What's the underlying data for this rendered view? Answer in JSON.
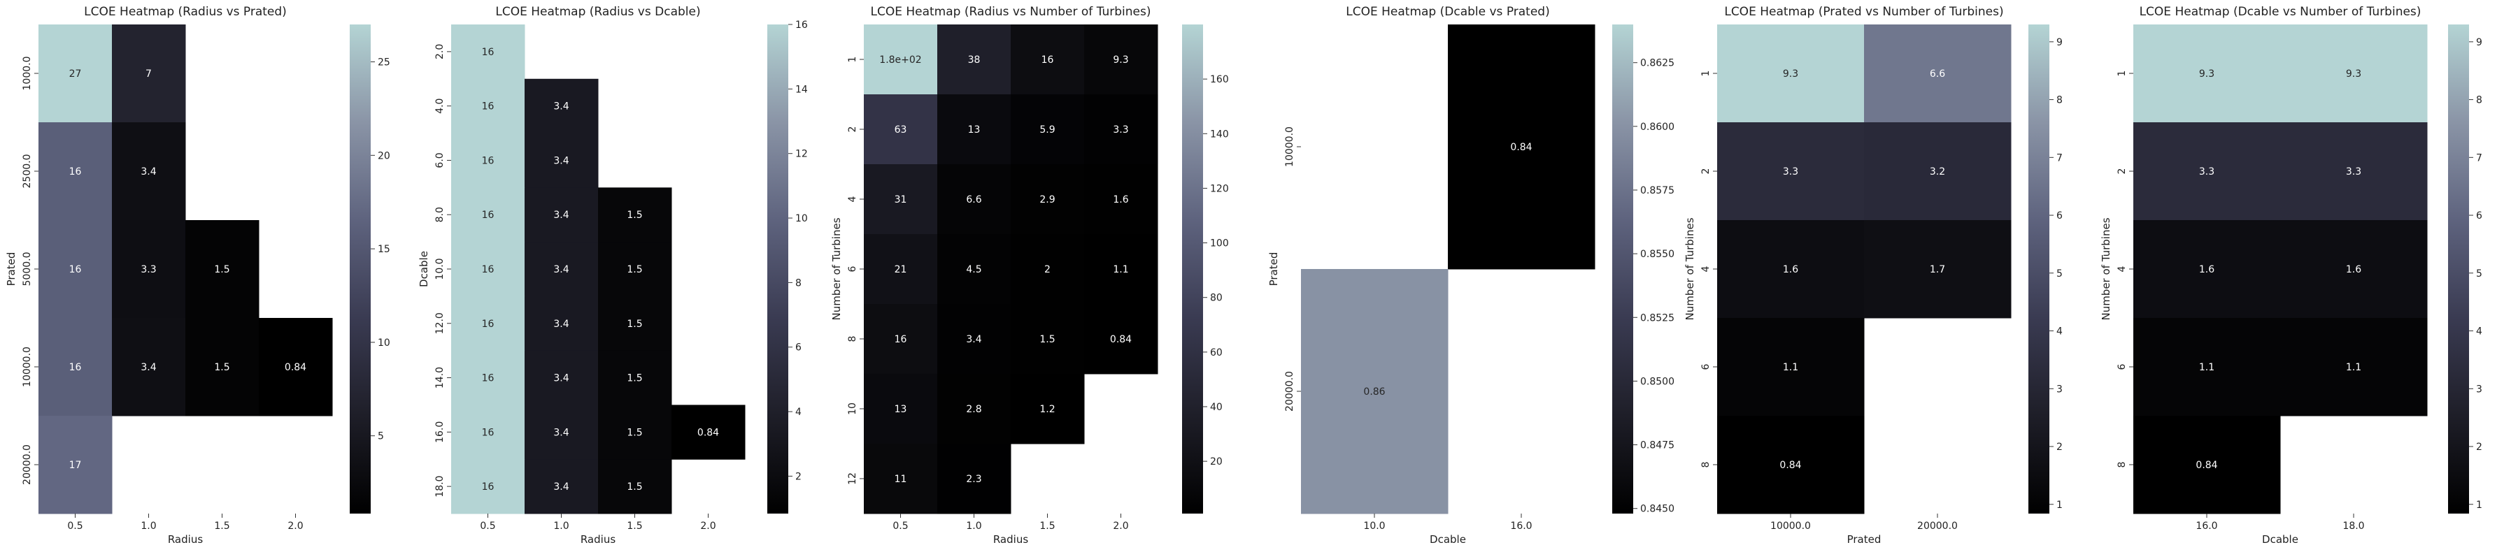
{
  "colormap": [
    "#000000",
    "#1e1e28",
    "#3a3b52",
    "#5e637e",
    "#8a94a6",
    "#b4d4d4"
  ],
  "chart_data": [
    {
      "type": "heatmap",
      "title": "LCOE Heatmap (Radius vs Prated)",
      "xlabel": "Radius",
      "ylabel": "Prated",
      "x_categories": [
        "0.5",
        "1.0",
        "1.5",
        "2.0"
      ],
      "y_categories": [
        "1000.0",
        "2500.0",
        "5000.0",
        "10000.0",
        "20000.0"
      ],
      "values": [
        [
          27,
          7,
          null,
          null
        ],
        [
          16,
          3.4,
          null,
          null
        ],
        [
          16,
          3.3,
          1.5,
          null
        ],
        [
          16,
          3.4,
          1.5,
          0.84
        ],
        [
          17,
          null,
          null,
          null
        ]
      ],
      "labels": [
        [
          "27",
          "7",
          "",
          ""
        ],
        [
          "16",
          "3.4",
          "",
          ""
        ],
        [
          "16",
          "3.3",
          "1.5",
          ""
        ],
        [
          "16",
          "3.4",
          "1.5",
          "0.84"
        ],
        [
          "17",
          "",
          "",
          ""
        ]
      ],
      "colorbar_range": [
        0.84,
        27
      ],
      "colorbar_ticks": [
        "5",
        "10",
        "15",
        "20",
        "25"
      ],
      "colorbar_tick_values": [
        5,
        10,
        15,
        20,
        25
      ]
    },
    {
      "type": "heatmap",
      "title": "LCOE Heatmap (Radius vs Dcable)",
      "xlabel": "Radius",
      "ylabel": "Dcable",
      "x_categories": [
        "0.5",
        "1.0",
        "1.5",
        "2.0"
      ],
      "y_categories": [
        "2.0",
        "4.0",
        "6.0",
        "8.0",
        "10.0",
        "12.0",
        "14.0",
        "16.0",
        "18.0"
      ],
      "values": [
        [
          16,
          null,
          null,
          null
        ],
        [
          16,
          3.4,
          null,
          null
        ],
        [
          16,
          3.4,
          null,
          null
        ],
        [
          16,
          3.4,
          1.5,
          null
        ],
        [
          16,
          3.4,
          1.5,
          null
        ],
        [
          16,
          3.4,
          1.5,
          null
        ],
        [
          16,
          3.4,
          1.5,
          null
        ],
        [
          16,
          3.4,
          1.5,
          0.84
        ],
        [
          16,
          3.4,
          1.5,
          null
        ]
      ],
      "labels": [
        [
          "16",
          "",
          "",
          ""
        ],
        [
          "16",
          "3.4",
          "",
          ""
        ],
        [
          "16",
          "3.4",
          "",
          ""
        ],
        [
          "16",
          "3.4",
          "1.5",
          ""
        ],
        [
          "16",
          "3.4",
          "1.5",
          ""
        ],
        [
          "16",
          "3.4",
          "1.5",
          ""
        ],
        [
          "16",
          "3.4",
          "1.5",
          ""
        ],
        [
          "16",
          "3.4",
          "1.5",
          "0.84"
        ],
        [
          "16",
          "3.4",
          "1.5",
          ""
        ]
      ],
      "colorbar_range": [
        0.84,
        16
      ],
      "colorbar_ticks": [
        "2",
        "4",
        "6",
        "8",
        "10",
        "12",
        "14",
        "16"
      ],
      "colorbar_tick_values": [
        2,
        4,
        6,
        8,
        10,
        12,
        14,
        16
      ]
    },
    {
      "type": "heatmap",
      "title": "LCOE Heatmap (Radius vs Number of Turbines)",
      "xlabel": "Radius",
      "ylabel": "Number of Turbines",
      "x_categories": [
        "0.5",
        "1.0",
        "1.5",
        "2.0"
      ],
      "y_categories": [
        "1",
        "2",
        "4",
        "6",
        "8",
        "10",
        "12"
      ],
      "values": [
        [
          180,
          38,
          16,
          9.3
        ],
        [
          63,
          13,
          5.9,
          3.3
        ],
        [
          31,
          6.6,
          2.9,
          1.6
        ],
        [
          21,
          4.5,
          2,
          1.1
        ],
        [
          16,
          3.4,
          1.5,
          0.84
        ],
        [
          13,
          2.8,
          1.2,
          null
        ],
        [
          11,
          2.3,
          null,
          null
        ]
      ],
      "labels": [
        [
          "1.8e+02",
          "38",
          "16",
          "9.3"
        ],
        [
          "63",
          "13",
          "5.9",
          "3.3"
        ],
        [
          "31",
          "6.6",
          "2.9",
          "1.6"
        ],
        [
          "21",
          "4.5",
          "2",
          "1.1"
        ],
        [
          "16",
          "3.4",
          "1.5",
          "0.84"
        ],
        [
          "13",
          "2.8",
          "1.2",
          ""
        ],
        [
          "11",
          "2.3",
          "",
          ""
        ]
      ],
      "colorbar_range": [
        0.84,
        180
      ],
      "colorbar_ticks": [
        "20",
        "40",
        "60",
        "80",
        "100",
        "120",
        "140",
        "160"
      ],
      "colorbar_tick_values": [
        20,
        40,
        60,
        80,
        100,
        120,
        140,
        160
      ]
    },
    {
      "type": "heatmap",
      "title": "LCOE Heatmap (Dcable vs Prated)",
      "xlabel": "Dcable",
      "ylabel": "Prated",
      "x_categories": [
        "10.0",
        "16.0"
      ],
      "y_categories": [
        "10000.0",
        "20000.0"
      ],
      "y_tick_style": "plain",
      "values": [
        [
          null,
          0.84
        ],
        [
          0.86,
          null
        ]
      ],
      "labels": [
        [
          "",
          "0.84"
        ],
        [
          "0.86",
          ""
        ]
      ],
      "colorbar_range": [
        0.8448,
        0.864
      ],
      "colorbar_ticks": [
        "0.8450",
        "0.8475",
        "0.8500",
        "0.8525",
        "0.8550",
        "0.8575",
        "0.8600",
        "0.8625"
      ],
      "colorbar_tick_values": [
        0.845,
        0.8475,
        0.85,
        0.8525,
        0.855,
        0.8575,
        0.86,
        0.8625
      ]
    },
    {
      "type": "heatmap",
      "title": "LCOE Heatmap (Prated vs Number of Turbines)",
      "xlabel": "Prated",
      "ylabel": "Number of Turbines",
      "x_categories": [
        "10000.0",
        "20000.0"
      ],
      "y_categories": [
        "1",
        "2",
        "4",
        "6",
        "8"
      ],
      "values": [
        [
          9.3,
          6.6
        ],
        [
          3.3,
          3.2
        ],
        [
          1.6,
          1.7
        ],
        [
          1.1,
          null
        ],
        [
          0.84,
          null
        ]
      ],
      "labels": [
        [
          "9.3",
          "6.6"
        ],
        [
          "3.3",
          "3.2"
        ],
        [
          "1.6",
          "1.7"
        ],
        [
          "1.1",
          ""
        ],
        [
          "0.84",
          ""
        ]
      ],
      "colorbar_range": [
        0.84,
        9.3
      ],
      "colorbar_ticks": [
        "1",
        "2",
        "3",
        "4",
        "5",
        "6",
        "7",
        "8",
        "9"
      ],
      "colorbar_tick_values": [
        1,
        2,
        3,
        4,
        5,
        6,
        7,
        8,
        9
      ]
    },
    {
      "type": "heatmap",
      "title": "LCOE Heatmap (Dcable vs Number of Turbines)",
      "xlabel": "Dcable",
      "ylabel": "Number of Turbines",
      "x_categories": [
        "16.0",
        "18.0"
      ],
      "y_categories": [
        "1",
        "2",
        "4",
        "6",
        "8"
      ],
      "values": [
        [
          9.3,
          9.3
        ],
        [
          3.3,
          3.3
        ],
        [
          1.6,
          1.6
        ],
        [
          1.1,
          1.1
        ],
        [
          0.84,
          null
        ]
      ],
      "labels": [
        [
          "9.3",
          "9.3"
        ],
        [
          "3.3",
          "3.3"
        ],
        [
          "1.6",
          "1.6"
        ],
        [
          "1.1",
          "1.1"
        ],
        [
          "0.84",
          ""
        ]
      ],
      "colorbar_range": [
        0.84,
        9.3
      ],
      "colorbar_ticks": [
        "1",
        "2",
        "3",
        "4",
        "5",
        "6",
        "7",
        "8",
        "9"
      ],
      "colorbar_tick_values": [
        1,
        2,
        3,
        4,
        5,
        6,
        7,
        8,
        9
      ]
    }
  ]
}
